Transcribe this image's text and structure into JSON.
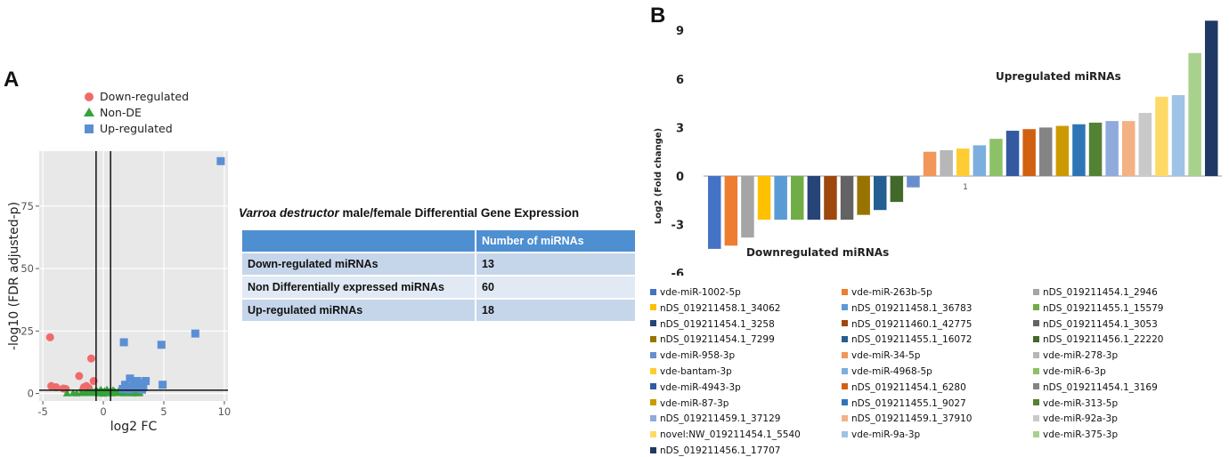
{
  "panels": {
    "a": "A",
    "b": "B"
  },
  "colors": {
    "down": "#ef6b6b",
    "nonde": "#35a33a",
    "up": "#5b8fd4",
    "panel_bg": "#e8e8e8",
    "table_header": "#4e8fd1"
  },
  "chart_data": [
    {
      "type": "scatter",
      "name": "volcano",
      "xlabel": "log2 FC",
      "ylabel": "-log10 (FDR adjusted-p)",
      "xlim": [
        -5.3,
        10.3
      ],
      "ylim": [
        -3,
        97
      ],
      "xticks": [
        -5,
        0,
        5,
        10
      ],
      "yticks": [
        0,
        25,
        50,
        75
      ],
      "vlines": [
        -0.6,
        0.6
      ],
      "hline": 1.3,
      "legend": [
        {
          "label": "Down-regulated",
          "shape": "circle",
          "group": "down"
        },
        {
          "label": "Non-DE",
          "shape": "triangle",
          "group": "nonde"
        },
        {
          "label": "Up-regulated",
          "shape": "square",
          "group": "up"
        }
      ],
      "series": [
        {
          "name": "Down-regulated",
          "group": "down",
          "x": [
            -4.4,
            -4.3,
            -3.9,
            -3.3,
            -3.1,
            -2.0,
            -1.6,
            -1.4,
            -1.2,
            -1.0,
            -0.8,
            -1.3,
            -1.7
          ],
          "y": [
            22.5,
            3.0,
            2.5,
            2.0,
            1.8,
            7.0,
            2.5,
            3.0,
            2.2,
            14.0,
            5.0,
            1.5,
            1.2
          ]
        },
        {
          "name": "Non-DE",
          "group": "nonde",
          "x": [
            -3.0,
            -2.5,
            -2.2,
            -1.8,
            -1.5,
            -1.3,
            -1.1,
            -0.9,
            -0.7,
            -0.5,
            -0.4,
            -0.3,
            -0.2,
            -0.1,
            0.0,
            0.1,
            0.2,
            0.3,
            0.4,
            0.5,
            0.6,
            0.7,
            0.8,
            0.9,
            1.0,
            1.1,
            1.2,
            1.3,
            1.4,
            1.5,
            1.6,
            1.7,
            1.8,
            1.9,
            2.0,
            2.1,
            2.2,
            2.3,
            2.4,
            2.5,
            2.6,
            2.7,
            2.8,
            3.0,
            -0.6,
            -0.2,
            0.3,
            0.8,
            1.3,
            1.8,
            2.3,
            -0.8,
            -0.3,
            0.2,
            0.7,
            1.2,
            1.7,
            2.2,
            2.7,
            0.0
          ],
          "y": [
            0.1,
            0.2,
            0.1,
            0.3,
            0.2,
            0.4,
            0.3,
            0.6,
            0.5,
            0.8,
            0.4,
            0.9,
            0.3,
            0.7,
            0.5,
            1.0,
            0.6,
            0.2,
            0.8,
            0.4,
            1.1,
            0.3,
            0.7,
            0.9,
            0.5,
            0.2,
            0.6,
            0.4,
            0.8,
            0.3,
            0.5,
            0.2,
            0.6,
            0.3,
            0.4,
            0.2,
            0.5,
            0.3,
            0.1,
            0.4,
            0.2,
            0.3,
            0.1,
            0.2,
            1.4,
            1.5,
            1.6,
            1.3,
            1.2,
            1.0,
            0.9,
            0.2,
            0.1,
            0.3,
            0.1,
            0.2,
            0.1,
            0.3,
            0.6,
            0.0
          ]
        },
        {
          "name": "Up-regulated",
          "group": "up",
          "x": [
            9.7,
            1.7,
            4.8,
            7.6,
            2.2,
            2.8,
            3.5,
            3.0,
            4.9,
            1.8,
            2.5,
            3.3,
            2.0,
            2.4,
            2.9,
            1.6,
            2.1,
            3.2
          ],
          "y": [
            93.0,
            20.5,
            19.5,
            24.0,
            6.0,
            5.0,
            5.0,
            4.0,
            3.5,
            3.5,
            3.0,
            2.5,
            2.5,
            2.0,
            2.0,
            1.8,
            1.6,
            1.5
          ]
        }
      ]
    },
    {
      "type": "bar",
      "name": "fold-change",
      "ylabel": "Log2 (Fold change)",
      "xtick": "1",
      "ylim": [
        -6,
        10
      ],
      "yticks": [
        -6,
        -3,
        0,
        3,
        6,
        9
      ],
      "annotations": {
        "up": "Upregulated miRNAs",
        "down": "Downregulated miRNAs"
      },
      "series": [
        {
          "name": "vde-miR-1002-5p",
          "value": -4.5,
          "color": "#4472c4"
        },
        {
          "name": "vde-miR-263b-5p",
          "value": -4.3,
          "color": "#ed7d31"
        },
        {
          "name": "nDS_019211454.1_2946",
          "value": -3.8,
          "color": "#a5a5a5"
        },
        {
          "name": "nDS_019211458.1_34062",
          "value": -2.7,
          "color": "#ffc000"
        },
        {
          "name": "nDS_019211458.1_36783",
          "value": -2.7,
          "color": "#5b9bd5"
        },
        {
          "name": "nDS_019211455.1_15579",
          "value": -2.7,
          "color": "#70ad47"
        },
        {
          "name": "nDS_019211454.1_3258",
          "value": -2.7,
          "color": "#264478"
        },
        {
          "name": "nDS_019211460.1_42775",
          "value": -2.7,
          "color": "#9e480e"
        },
        {
          "name": "nDS_019211454.1_3053",
          "value": -2.7,
          "color": "#636363"
        },
        {
          "name": "nDS_019211454.1_7299",
          "value": -2.4,
          "color": "#997300"
        },
        {
          "name": "nDS_019211455.1_16072",
          "value": -2.1,
          "color": "#255e91"
        },
        {
          "name": "nDS_019211456.1_22220",
          "value": -1.6,
          "color": "#43682b"
        },
        {
          "name": "vde-miR-958-3p",
          "value": -0.7,
          "color": "#698ed0"
        },
        {
          "name": "vde-miR-34-5p",
          "value": 1.5,
          "color": "#f1975a"
        },
        {
          "name": "vde-miR-278-3p",
          "value": 1.6,
          "color": "#b7b7b7"
        },
        {
          "name": "vde-bantam-3p",
          "value": 1.7,
          "color": "#ffcd33"
        },
        {
          "name": "vde-miR-4968-5p",
          "value": 1.9,
          "color": "#7cafdd"
        },
        {
          "name": "vde-miR-6-3p",
          "value": 2.3,
          "color": "#8cc168"
        },
        {
          "name": "vde-miR-4943-3p",
          "value": 2.8,
          "color": "#335aa1"
        },
        {
          "name": "nDS_019211454.1_6280",
          "value": 2.9,
          "color": "#d26012"
        },
        {
          "name": "nDS_019211454.1_3169",
          "value": 3.0,
          "color": "#848484"
        },
        {
          "name": "vde-miR-87-3p",
          "value": 3.1,
          "color": "#cc9a00"
        },
        {
          "name": "nDS_019211455.1_9027",
          "value": 3.2,
          "color": "#2e75b6"
        },
        {
          "name": "vde-miR-313-5p",
          "value": 3.3,
          "color": "#548235"
        },
        {
          "name": "nDS_019211459.1_37129",
          "value": 3.4,
          "color": "#8faadc"
        },
        {
          "name": "nDS_019211459.1_37910",
          "value": 3.4,
          "color": "#f4b183"
        },
        {
          "name": "vde-miR-92a-3p",
          "value": 3.9,
          "color": "#c9c9c9"
        },
        {
          "name": "novel:NW_019211454.1_5540",
          "value": 4.9,
          "color": "#ffd966"
        },
        {
          "name": "vde-miR-9a-3p",
          "value": 5.0,
          "color": "#9dc3e6"
        },
        {
          "name": "vde-miR-375-3p",
          "value": 7.6,
          "color": "#a9d18e"
        },
        {
          "name": "nDS_019211456.1_17707",
          "value": 9.6,
          "color": "#203864"
        }
      ]
    }
  ],
  "table": {
    "title_species": "Varroa destructor",
    "title_rest": " male/female  Differential Gene Expression",
    "header": [
      "",
      "Number of miRNAs"
    ],
    "rows": [
      {
        "label": "Down-regulated miRNAs",
        "value": "13"
      },
      {
        "label": "Non Differentially expressed miRNAs",
        "value": "60"
      },
      {
        "label": "Up-regulated miRNAs",
        "value": "18"
      }
    ]
  }
}
